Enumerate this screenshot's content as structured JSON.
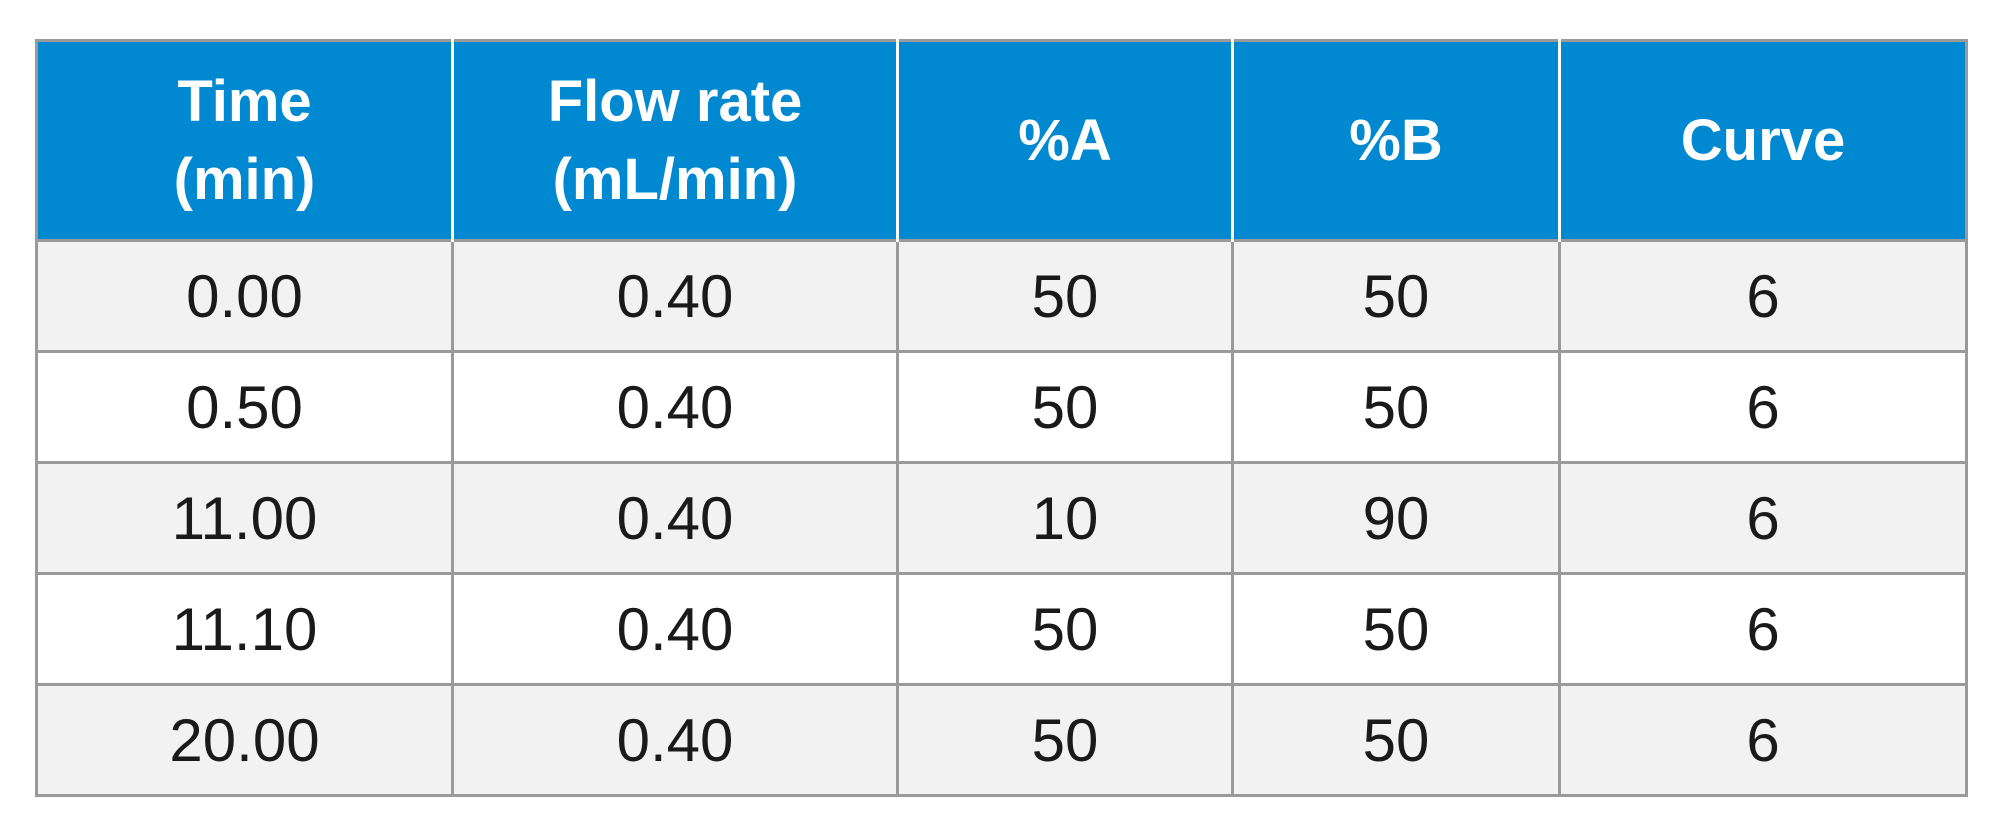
{
  "table": {
    "headers": [
      [
        "Time",
        "(min)"
      ],
      [
        "Flow rate",
        "(mL/min)"
      ],
      [
        "%A"
      ],
      [
        "%B"
      ],
      [
        "Curve"
      ]
    ],
    "rows": [
      [
        "0.00",
        "0.40",
        "50",
        "50",
        "6"
      ],
      [
        "0.50",
        "0.40",
        "50",
        "50",
        "6"
      ],
      [
        "11.00",
        "0.40",
        "10",
        "90",
        "6"
      ],
      [
        "11.10",
        "0.40",
        "50",
        "50",
        "6"
      ],
      [
        "20.00",
        "0.40",
        "50",
        "50",
        "6"
      ]
    ],
    "colors": {
      "header_background": "#0089d1",
      "header_text": "#ffffff",
      "row_shaded": "#f2f2f3",
      "row_plain": "#ffffff",
      "grid_line": "#9a9a9a"
    }
  }
}
